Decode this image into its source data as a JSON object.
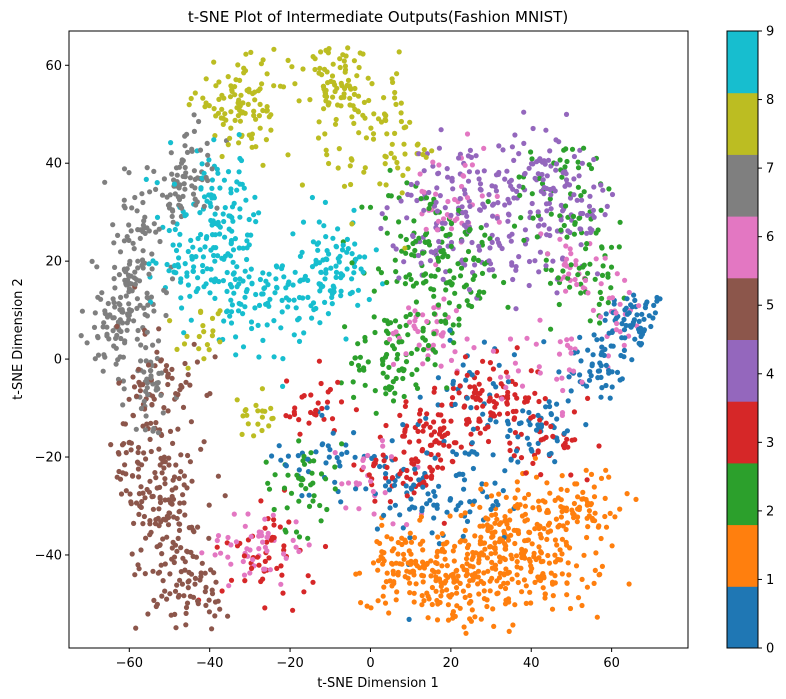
{
  "chart_data": {
    "type": "scatter",
    "title": "t-SNE Plot of Intermediate Outputs(Fashion MNIST)",
    "xlabel": "t-SNE Dimension 1",
    "ylabel": "t-SNE Dimension 2",
    "xlim": [
      -75,
      79
    ],
    "ylim": [
      -59,
      67
    ],
    "xticks": [
      -60,
      -40,
      -20,
      0,
      20,
      40,
      60
    ],
    "yticks": [
      -40,
      -20,
      0,
      20,
      40,
      60
    ],
    "grid": false,
    "colorbar": {
      "min": 0,
      "max": 9,
      "ticks": [
        0,
        1,
        2,
        3,
        4,
        5,
        6,
        7,
        8,
        9
      ],
      "colors": [
        "#1f77b4",
        "#ff7f0e",
        "#2ca02c",
        "#d62728",
        "#9467bd",
        "#8c564b",
        "#e377c2",
        "#7f7f7f",
        "#bcbd22",
        "#17becf"
      ]
    },
    "series": [
      {
        "label": 0,
        "clusters": [
          [
            66,
            8,
            4,
            3,
            60
          ],
          [
            56,
            -1,
            5,
            4,
            55
          ],
          [
            42,
            -14,
            5,
            4,
            45
          ],
          [
            22,
            -28,
            8,
            6,
            70
          ],
          [
            5,
            -25,
            5,
            5,
            40
          ],
          [
            -12,
            -20,
            5,
            5,
            35
          ],
          [
            25,
            -5,
            6,
            6,
            35
          ]
        ]
      },
      {
        "label": 1,
        "clusters": [
          [
            42,
            -38,
            8,
            7,
            230
          ],
          [
            22,
            -45,
            8,
            5,
            170
          ],
          [
            8,
            -42,
            5,
            4,
            80
          ],
          [
            30,
            -35,
            4,
            3,
            40
          ],
          [
            55,
            -30,
            4,
            4,
            30
          ]
        ]
      },
      {
        "label": 2,
        "clusters": [
          [
            5,
            0,
            5,
            5,
            70
          ],
          [
            12,
            22,
            6,
            8,
            80
          ],
          [
            25,
            20,
            5,
            5,
            45
          ],
          [
            48,
            33,
            7,
            6,
            60
          ],
          [
            55,
            18,
            5,
            5,
            45
          ],
          [
            -17,
            -25,
            5,
            5,
            45
          ],
          [
            15,
            8,
            6,
            6,
            40
          ]
        ]
      },
      {
        "label": 3,
        "clusters": [
          [
            30,
            -8,
            6,
            4,
            90
          ],
          [
            15,
            -16,
            5,
            4,
            60
          ],
          [
            8,
            -22,
            5,
            4,
            50
          ],
          [
            -25,
            -40,
            6,
            5,
            50
          ],
          [
            -15,
            -10,
            4,
            4,
            30
          ],
          [
            45,
            -18,
            6,
            4,
            35
          ]
        ]
      },
      {
        "label": 4,
        "clusters": [
          [
            25,
            35,
            8,
            5,
            90
          ],
          [
            45,
            38,
            6,
            5,
            70
          ],
          [
            15,
            25,
            6,
            5,
            50
          ],
          [
            35,
            22,
            8,
            5,
            50
          ],
          [
            50,
            28,
            5,
            4,
            35
          ]
        ]
      },
      {
        "label": 5,
        "clusters": [
          [
            -53,
            -10,
            5,
            9,
            100
          ],
          [
            -50,
            -32,
            5,
            7,
            110
          ],
          [
            -45,
            -48,
            5,
            4,
            60
          ],
          [
            -58,
            -25,
            3,
            4,
            30
          ]
        ]
      },
      {
        "label": 6,
        "clusters": [
          [
            -28,
            -38,
            6,
            4,
            50
          ],
          [
            15,
            5,
            6,
            4,
            45
          ],
          [
            45,
            0,
            6,
            5,
            35
          ],
          [
            20,
            32,
            6,
            5,
            40
          ],
          [
            50,
            18,
            5,
            5,
            30
          ],
          [
            62,
            8,
            4,
            4,
            20
          ],
          [
            0,
            -25,
            5,
            5,
            25
          ]
        ]
      },
      {
        "label": 7,
        "clusters": [
          [
            -63,
            8,
            4,
            5,
            90
          ],
          [
            -58,
            22,
            4,
            8,
            90
          ],
          [
            -55,
            -5,
            3,
            5,
            50
          ],
          [
            -48,
            33,
            4,
            3,
            40
          ],
          [
            -43,
            42,
            3,
            5,
            30
          ]
        ]
      },
      {
        "label": 8,
        "clusters": [
          [
            -32,
            52,
            6,
            4,
            100
          ],
          [
            -3,
            50,
            7,
            8,
            100
          ],
          [
            -10,
            57,
            3,
            3,
            40
          ],
          [
            -28,
            -12,
            3,
            2,
            20
          ],
          [
            -42,
            5,
            3,
            3,
            20
          ],
          [
            8,
            42,
            4,
            3,
            20
          ]
        ]
      },
      {
        "label": 9,
        "clusters": [
          [
            -38,
            28,
            6,
            7,
            130
          ],
          [
            -10,
            18,
            5,
            5,
            100
          ],
          [
            -28,
            12,
            6,
            5,
            90
          ],
          [
            -45,
            18,
            4,
            4,
            40
          ]
        ]
      }
    ]
  }
}
